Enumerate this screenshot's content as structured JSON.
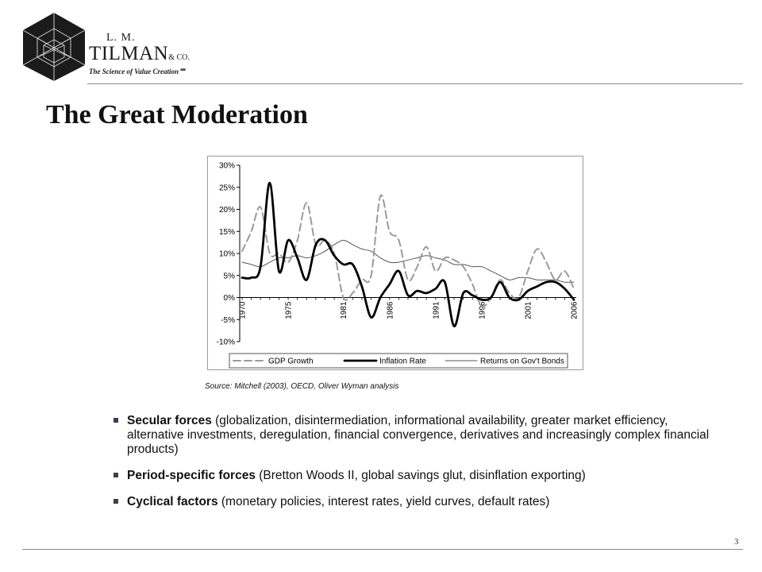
{
  "brand": {
    "initials": "L. M.",
    "name": "TILMAN",
    "suffix": "& CO.",
    "tagline": "The Science of Value Creation℠"
  },
  "slide": {
    "title": "The Great Moderation",
    "page_number": "3"
  },
  "chart_data": {
    "type": "line",
    "x_tick_labels": [
      "1970",
      "1975",
      "1981",
      "1986",
      "1991",
      "1996",
      "2001",
      "2006"
    ],
    "y_tick_labels": [
      "30%",
      "25%",
      "20%",
      "15%",
      "10%",
      "5%",
      "0%",
      "-5%",
      "-10%"
    ],
    "ylim": [
      -10,
      30
    ],
    "xlim": [
      1970,
      2006
    ],
    "grid": false,
    "legend_position": "bottom",
    "series": [
      {
        "name": "GDP Growth",
        "style": "dashed",
        "color": "#9a9a9a",
        "x": [
          1970,
          1971,
          1972,
          1973,
          1974,
          1975,
          1976,
          1977,
          1978,
          1979,
          1980,
          1981,
          1982,
          1983,
          1984,
          1985,
          1986,
          1987,
          1988,
          1989,
          1990,
          1991,
          1992,
          1993,
          1994,
          1995,
          1996,
          1997,
          1998,
          1999,
          2000,
          2001,
          2002,
          2003,
          2004,
          2005,
          2006
        ],
        "values": [
          10.5,
          15,
          20.5,
          10,
          10,
          8,
          13,
          21.5,
          12,
          13,
          10,
          0,
          1,
          4,
          5,
          23,
          15,
          13,
          4,
          7,
          11.5,
          6,
          9,
          8.5,
          7,
          3,
          -2,
          0,
          4,
          1,
          0,
          6,
          11,
          8,
          4,
          6,
          2
        ]
      },
      {
        "name": "Inflation Rate",
        "style": "solid-thick",
        "color": "#000000",
        "x": [
          1970,
          1971,
          1972,
          1973,
          1974,
          1975,
          1976,
          1977,
          1978,
          1979,
          1980,
          1981,
          1982,
          1983,
          1984,
          1985,
          1986,
          1987,
          1988,
          1989,
          1990,
          1991,
          1992,
          1993,
          1994,
          1995,
          1996,
          1997,
          1998,
          1999,
          2000,
          2001,
          2002,
          2003,
          2004,
          2005,
          2006
        ],
        "values": [
          4.5,
          4.5,
          7,
          26,
          6,
          13,
          9,
          4,
          12,
          13,
          9.5,
          7.5,
          7.5,
          2.5,
          -4.5,
          0,
          3,
          6,
          0.5,
          1.5,
          1,
          2,
          3.5,
          -6.5,
          1,
          0.5,
          -0.5,
          0,
          3.5,
          0,
          -0.5,
          1.5,
          2.5,
          3.5,
          3.5,
          2,
          -0.5
        ]
      },
      {
        "name": "Returns on Gov't Bonds",
        "style": "solid-thin",
        "color": "#555555",
        "x": [
          1970,
          1971,
          1972,
          1973,
          1974,
          1975,
          1976,
          1977,
          1978,
          1979,
          1980,
          1981,
          1982,
          1983,
          1984,
          1985,
          1986,
          1987,
          1988,
          1989,
          1990,
          1991,
          1992,
          1993,
          1994,
          1995,
          1996,
          1997,
          1998,
          1999,
          2000,
          2001,
          2002,
          2003,
          2004,
          2005,
          2006
        ],
        "values": [
          8,
          7.5,
          7,
          8,
          9,
          9,
          9.5,
          9,
          9.5,
          10.5,
          12,
          13,
          12,
          11,
          10.5,
          9,
          8,
          8,
          8.5,
          9,
          9.5,
          9,
          8.5,
          7.5,
          7.5,
          7,
          7,
          6,
          5,
          4,
          4.5,
          4.5,
          4,
          4,
          4,
          3.5,
          3.5
        ]
      }
    ]
  },
  "source_note": "Source: Mitchell (2003), OECD, Oliver Wyman analysis",
  "bullets": [
    {
      "bold": "Secular forces",
      "text": " (globalization, disintermediation, informational availability, greater market efficiency, alternative investments, deregulation, financial convergence, derivatives and increasingly complex financial products)"
    },
    {
      "bold": "Period-specific forces",
      "text": " (Bretton Woods II, global savings glut, disinflation exporting)"
    },
    {
      "bold": "Cyclical factors",
      "text": " (monetary policies, interest rates, yield curves, default rates)"
    }
  ]
}
